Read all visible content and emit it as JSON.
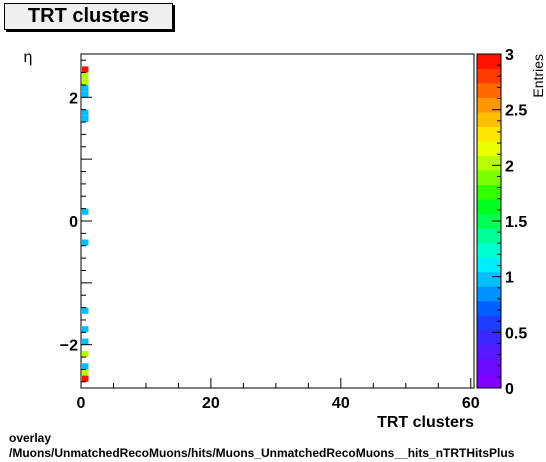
{
  "title": "TRT clusters",
  "footer": {
    "line1": "overlay",
    "line2": "/Muons/UnmatchedRecoMuons/hits/Muons_UnmatchedRecoMuons__hits_nTRTHitsPlus"
  },
  "chart_data": {
    "type": "heatmap",
    "title": "TRT clusters",
    "xlabel": "TRT clusters",
    "ylabel": "η",
    "xlim": [
      0,
      60.5
    ],
    "ylim": [
      -2.7,
      2.7
    ],
    "xticks": [
      0,
      20,
      40,
      60
    ],
    "yticks": [
      -2,
      0,
      2
    ],
    "zlabel": "Entries",
    "zlim": [
      0,
      3
    ],
    "zticks": [
      0,
      0.5,
      1,
      1.5,
      2,
      2.5,
      3
    ],
    "bin_width_x": 1,
    "bin_height_eta": 0.1,
    "cells": [
      {
        "x": 0,
        "eta": 2.45,
        "z": 3
      },
      {
        "x": 0,
        "eta": 2.35,
        "z": 2
      },
      {
        "x": 0,
        "eta": 2.25,
        "z": 2
      },
      {
        "x": 0,
        "eta": 2.15,
        "z": 1
      },
      {
        "x": 0,
        "eta": 2.05,
        "z": 1
      },
      {
        "x": 0,
        "eta": 1.75,
        "z": 1
      },
      {
        "x": 0,
        "eta": 1.65,
        "z": 1
      },
      {
        "x": 0,
        "eta": 0.15,
        "z": 1
      },
      {
        "x": 0,
        "eta": -0.35,
        "z": 1
      },
      {
        "x": 0,
        "eta": -1.45,
        "z": 1
      },
      {
        "x": 0,
        "eta": -1.75,
        "z": 1
      },
      {
        "x": 0,
        "eta": -1.95,
        "z": 1
      },
      {
        "x": 0,
        "eta": -2.15,
        "z": 2
      },
      {
        "x": 0,
        "eta": -2.35,
        "z": 1
      },
      {
        "x": 0,
        "eta": -2.45,
        "z": 2
      },
      {
        "x": 0,
        "eta": -2.55,
        "z": 3
      }
    ],
    "palette": [
      "#7f00ff",
      "#6a0aff",
      "#5a1aff",
      "#3a28ff",
      "#1d3cff",
      "#0060ff",
      "#0090ff",
      "#00bfff",
      "#00efff",
      "#00ffce",
      "#00ff99",
      "#00ff55",
      "#00ff20",
      "#33ff00",
      "#7cff00",
      "#b5ff00",
      "#e8ff00",
      "#ffe600",
      "#ffc000",
      "#ff9800",
      "#ff6a00",
      "#ff3b00",
      "#ff1200"
    ]
  }
}
